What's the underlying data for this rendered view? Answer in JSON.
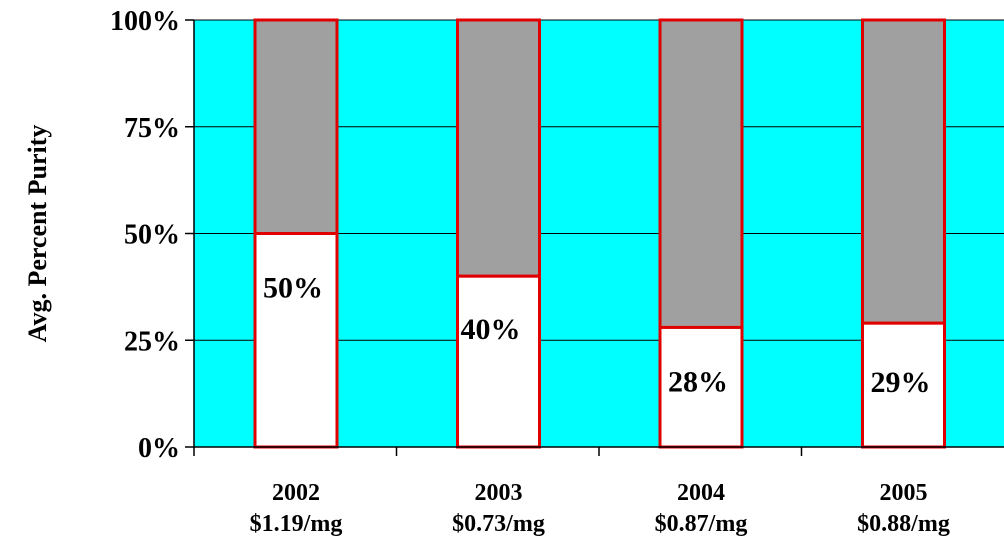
{
  "chart_data": {
    "type": "bar",
    "stacked": "percent",
    "categories": [
      "2002",
      "2003",
      "2004",
      "2005"
    ],
    "category_sublabels": [
      "$1.19/mg",
      "$0.73/mg",
      "$0.87/mg",
      "$0.88/mg"
    ],
    "values": [
      50,
      40,
      28,
      29
    ],
    "data_labels": [
      "50%",
      "40%",
      "28%",
      "29%"
    ],
    "remainder_values": [
      50,
      60,
      72,
      71
    ],
    "title": "",
    "xlabel": "",
    "ylabel": "Avg. Percent Purity",
    "ylim": [
      0,
      100
    ],
    "yticks": [
      0,
      25,
      50,
      75,
      100
    ],
    "ytick_labels": [
      "0%",
      "25%",
      "50%",
      "75%",
      "100%"
    ],
    "grid": true,
    "legend": "none",
    "colors": {
      "plot_background": "#00FFFF",
      "value_fill": "#FFFFFF",
      "remainder_fill": "#A0A0A0",
      "bar_outline": "#E00000",
      "gridline": "#000000"
    }
  }
}
